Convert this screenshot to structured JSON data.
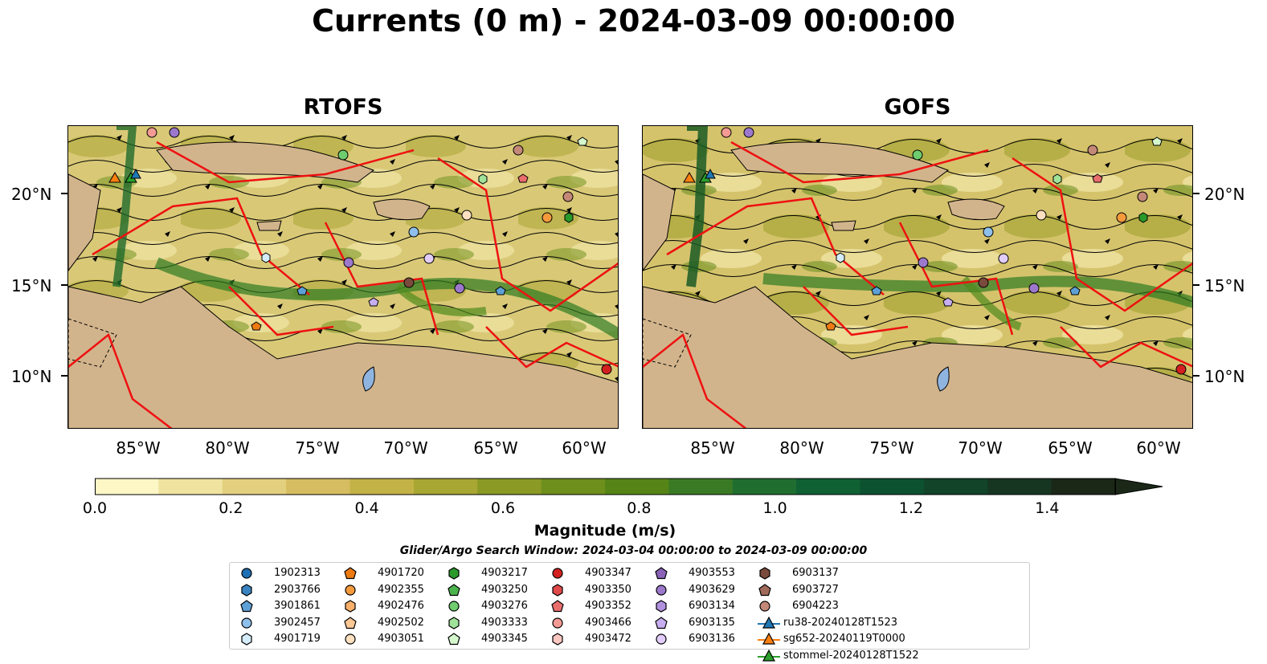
{
  "title": "Currents (0 m) - 2024-03-09 00:00:00",
  "panels": [
    {
      "title": "RTOFS"
    },
    {
      "title": "GOFS"
    }
  ],
  "y_axis_labels": [
    "20°N",
    "15°N",
    "10°N"
  ],
  "x_axis_labels": [
    "85°W",
    "80°W",
    "75°W",
    "70°W",
    "65°W",
    "60°W"
  ],
  "colorbar": {
    "label": "Magnitude (m/s)",
    "ticks": [
      "0.0",
      "0.2",
      "0.4",
      "0.6",
      "0.8",
      "1.0",
      "1.2",
      "1.4"
    ],
    "colors": [
      "#fdf7c6",
      "#f0e3a0",
      "#e3d07f",
      "#d6bd61",
      "#c3b347",
      "#a8a733",
      "#8b9a24",
      "#6e8f1c",
      "#568417",
      "#3b7a24",
      "#1f6e30",
      "#0f6133",
      "#0d5230",
      "#114428",
      "#173622",
      "#1b2818"
    ]
  },
  "search_window": "Glider/Argo Search Window: 2024-03-04 00:00:00 to 2024-03-09 00:00:00",
  "legend": {
    "columns": [
      [
        {
          "label": "1902313",
          "marker": "circle",
          "color": "#1f6fb4"
        },
        {
          "label": "2903766",
          "marker": "hexagon",
          "color": "#3a83c1"
        },
        {
          "label": "3901861",
          "marker": "pentagon",
          "color": "#5da0d6"
        },
        {
          "label": "3902457",
          "marker": "circle",
          "color": "#8fc0ec"
        },
        {
          "label": "4901719",
          "marker": "hexagon",
          "color": "#d5ecfb"
        }
      ],
      [
        {
          "label": "4901720",
          "marker": "pentagon",
          "color": "#ee7b12"
        },
        {
          "label": "4902355",
          "marker": "circle",
          "color": "#f59a3c"
        },
        {
          "label": "4902476",
          "marker": "hexagon",
          "color": "#f8b06a"
        },
        {
          "label": "4902502",
          "marker": "pentagon",
          "color": "#fbc896"
        },
        {
          "label": "4903051",
          "marker": "circle",
          "color": "#fde0c0"
        }
      ],
      [
        {
          "label": "4903217",
          "marker": "hexagon",
          "color": "#2a9a2a"
        },
        {
          "label": "4903250",
          "marker": "pentagon",
          "color": "#4cb44c"
        },
        {
          "label": "4903276",
          "marker": "circle",
          "color": "#6fcc6f"
        },
        {
          "label": "4903333",
          "marker": "hexagon",
          "color": "#a0e29a"
        },
        {
          "label": "4903345",
          "marker": "pentagon",
          "color": "#d4f7cc"
        }
      ],
      [
        {
          "label": "4903347",
          "marker": "circle",
          "color": "#d32020"
        },
        {
          "label": "4903350",
          "marker": "hexagon",
          "color": "#e04a4a"
        },
        {
          "label": "4903352",
          "marker": "pentagon",
          "color": "#ea6d6d"
        },
        {
          "label": "4903466",
          "marker": "circle",
          "color": "#f39a94"
        },
        {
          "label": "4903472",
          "marker": "hexagon",
          "color": "#fbc7c1"
        }
      ],
      [
        {
          "label": "4903553",
          "marker": "pentagon",
          "color": "#8a62b8"
        },
        {
          "label": "4903629",
          "marker": "circle",
          "color": "#9c78cc"
        },
        {
          "label": "6903134",
          "marker": "hexagon",
          "color": "#b091de"
        },
        {
          "label": "6903135",
          "marker": "pentagon",
          "color": "#c7aef0"
        },
        {
          "label": "6903136",
          "marker": "circle",
          "color": "#e2cdfa"
        }
      ],
      [
        {
          "label": "6903137",
          "marker": "hexagon",
          "color": "#7a4a3c"
        },
        {
          "label": "6903727",
          "marker": "pentagon",
          "color": "#a06a5a"
        },
        {
          "label": "6904223",
          "marker": "circle",
          "color": "#c48878"
        },
        {
          "label": "ru38-20240128T1523",
          "marker": "triangle-line",
          "color": "#1f77b4"
        },
        {
          "label": "sg652-20240119T0000",
          "marker": "triangle-line",
          "color": "#ff7f0e"
        },
        {
          "label": "stommel-20240128T1522",
          "marker": "triangle-line",
          "color": "#2ca02c"
        }
      ]
    ]
  }
}
